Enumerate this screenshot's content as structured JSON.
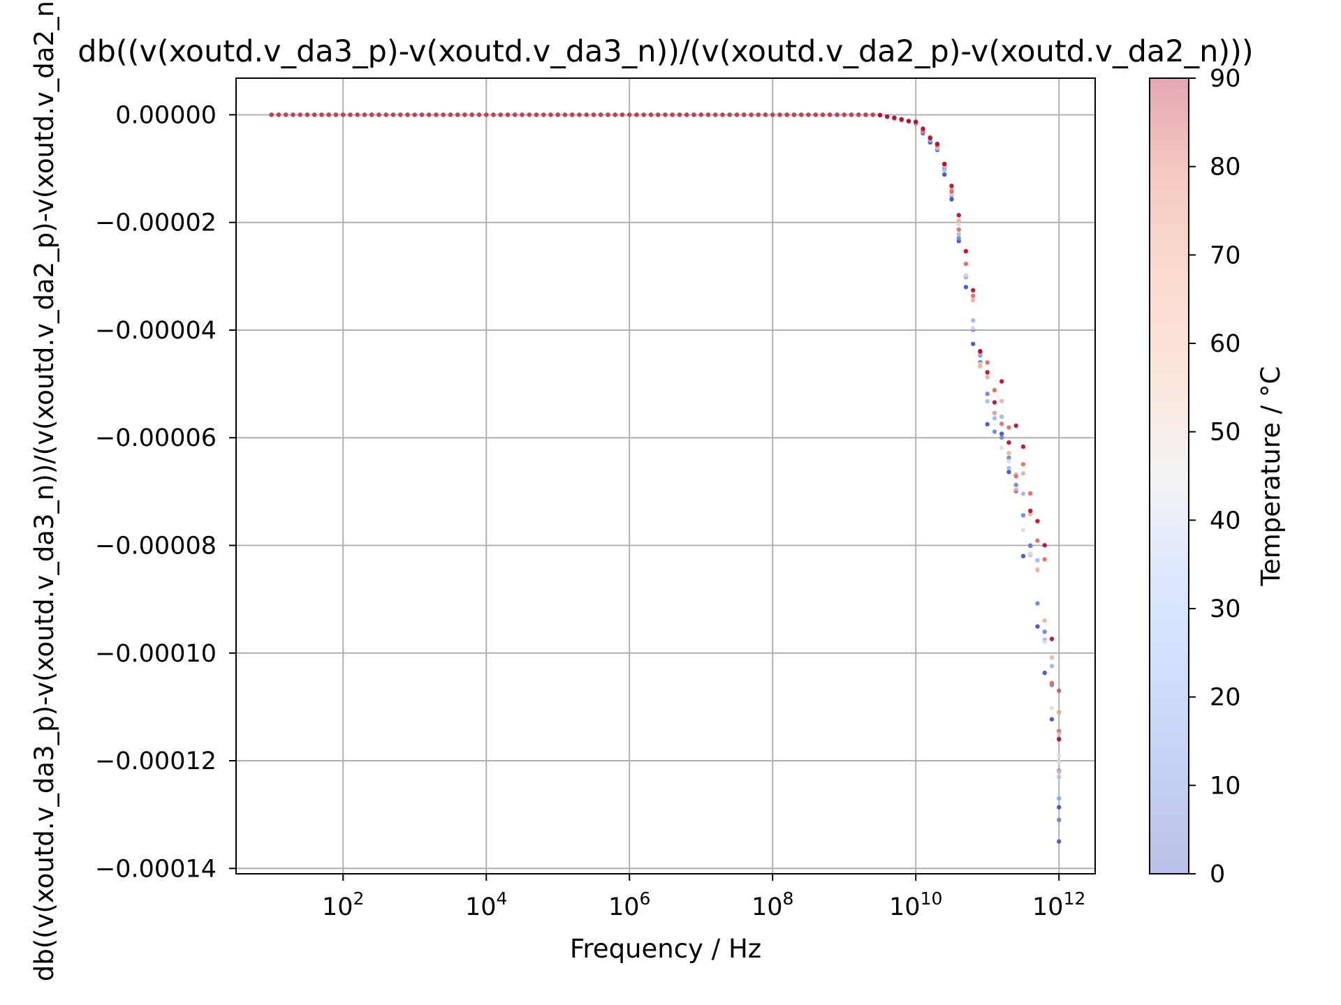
{
  "chart_data": {
    "type": "scatter",
    "title": "db((v(xoutd.v_da3_p)-v(xoutd.v_da3_n))/(v(xoutd.v_da2_p)-v(xoutd.v_da2_n)))",
    "xlabel": "Frequency / Hz",
    "ylabel": "db((v(xoutd.v_da3_p)-v(xoutd.v_da3_n))/(v(xoutd.v_da2_p)-v(xoutd.v_da2_n)))",
    "x_scale": "log",
    "xlim": [
      3.2,
      3200000000000.0
    ],
    "ylim": [
      -0.000141,
      6.8e-06
    ],
    "x_ticks": [
      {
        "label_base": "10",
        "label_exp": "2",
        "value": 100
      },
      {
        "label_base": "10",
        "label_exp": "4",
        "value": 10000
      },
      {
        "label_base": "10",
        "label_exp": "6",
        "value": 1000000
      },
      {
        "label_base": "10",
        "label_exp": "8",
        "value": 100000000
      },
      {
        "label_base": "10",
        "label_exp": "10",
        "value": 10000000000
      },
      {
        "label_base": "10",
        "label_exp": "12",
        "value": 1000000000000
      }
    ],
    "y_ticks": [
      {
        "label": "0.00000",
        "value": 0
      },
      {
        "label": "−0.00002",
        "value": -2e-05
      },
      {
        "label": "−0.00004",
        "value": -4e-05
      },
      {
        "label": "−0.00006",
        "value": -6e-05
      },
      {
        "label": "−0.00008",
        "value": -8e-05
      },
      {
        "label": "−0.00010",
        "value": -0.0001
      },
      {
        "label": "−0.00012",
        "value": -0.00012
      },
      {
        "label": "−0.00014",
        "value": -0.00014
      }
    ],
    "grid": true,
    "colorbar": {
      "label": "Temperature / °C",
      "range": [
        0,
        90
      ],
      "colormap": "coolwarm",
      "alpha": 0.3,
      "ticks": [
        "0",
        "10",
        "20",
        "30",
        "40",
        "50",
        "60",
        "70",
        "80",
        "90"
      ]
    },
    "point_color_coding": "temperature",
    "series": [
      {
        "x_range": [
          10,
          1000000000000
        ],
        "points_per_decade": 10,
        "flat_value": 0,
        "rolloff_points": [
          {
            "x": 3000000000,
            "y": 0
          },
          {
            "x": 10000000000,
            "y": -1.5e-06
          },
          {
            "x": 20000000000,
            "y": -6e-06
          },
          {
            "x": 30000000000,
            "y": -1.3e-05
          },
          {
            "x": 50000000000,
            "y": -2.8e-05
          },
          {
            "x": 70000000000,
            "y": -4.2e-05
          },
          {
            "x": 100000000000,
            "y": -5e-05
          },
          {
            "x": 200000000000,
            "y": -6.2e-05
          },
          {
            "x": 300000000000,
            "y": -7.1e-05
          },
          {
            "x": 500000000000,
            "y": -8.5e-05
          },
          {
            "x": 700000000000,
            "y": -9.8e-05
          },
          {
            "x": 1000000000000,
            "y": -0.00012
          }
        ],
        "minimum": {
          "x": 1000000000000,
          "y": -0.000135
        }
      }
    ],
    "colors": {
      "grid": "#b0b0b0",
      "axes": "#000000",
      "cold": "#3b4cc0",
      "mid": "#dddddd",
      "hot": "#b40426"
    }
  }
}
